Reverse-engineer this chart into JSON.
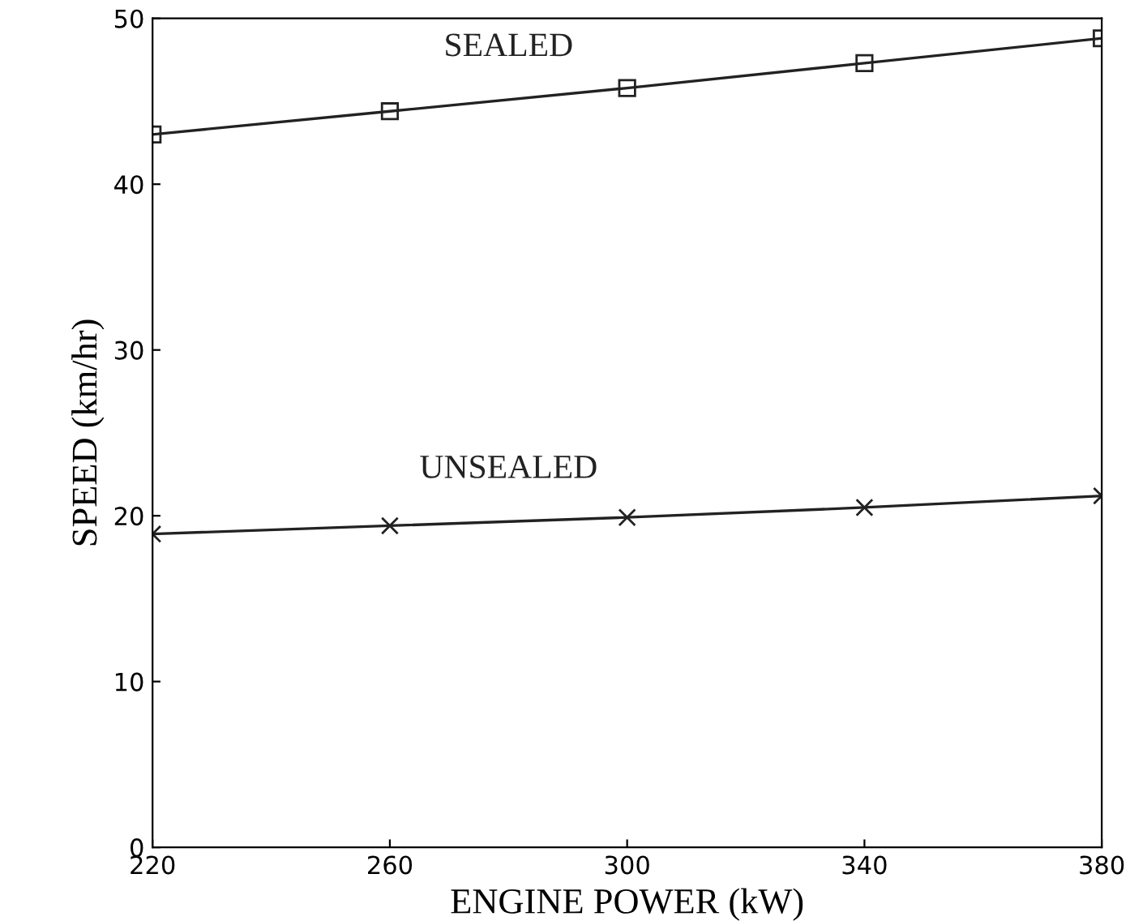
{
  "chart_data": {
    "type": "line",
    "xlabel": "ENGINE POWER (kW)",
    "ylabel": "SPEED (km/hr)",
    "x": [
      220,
      260,
      300,
      340,
      380
    ],
    "series": [
      {
        "name": "SEALED",
        "color": "#222222",
        "marker": "square",
        "values": [
          43,
          44.4,
          45.8,
          47.3,
          48.8
        ]
      },
      {
        "name": "UNSEALED",
        "color": "#222222",
        "marker": "cross",
        "values": [
          18.9,
          19.4,
          19.9,
          20.5,
          21.2
        ]
      }
    ],
    "xlim": [
      220,
      380
    ],
    "ylim": [
      0,
      50
    ],
    "xticks": [
      220,
      260,
      300,
      340,
      380
    ],
    "yticks": [
      0,
      10,
      20,
      30,
      40,
      50
    ],
    "grid": false,
    "legend": false
  }
}
